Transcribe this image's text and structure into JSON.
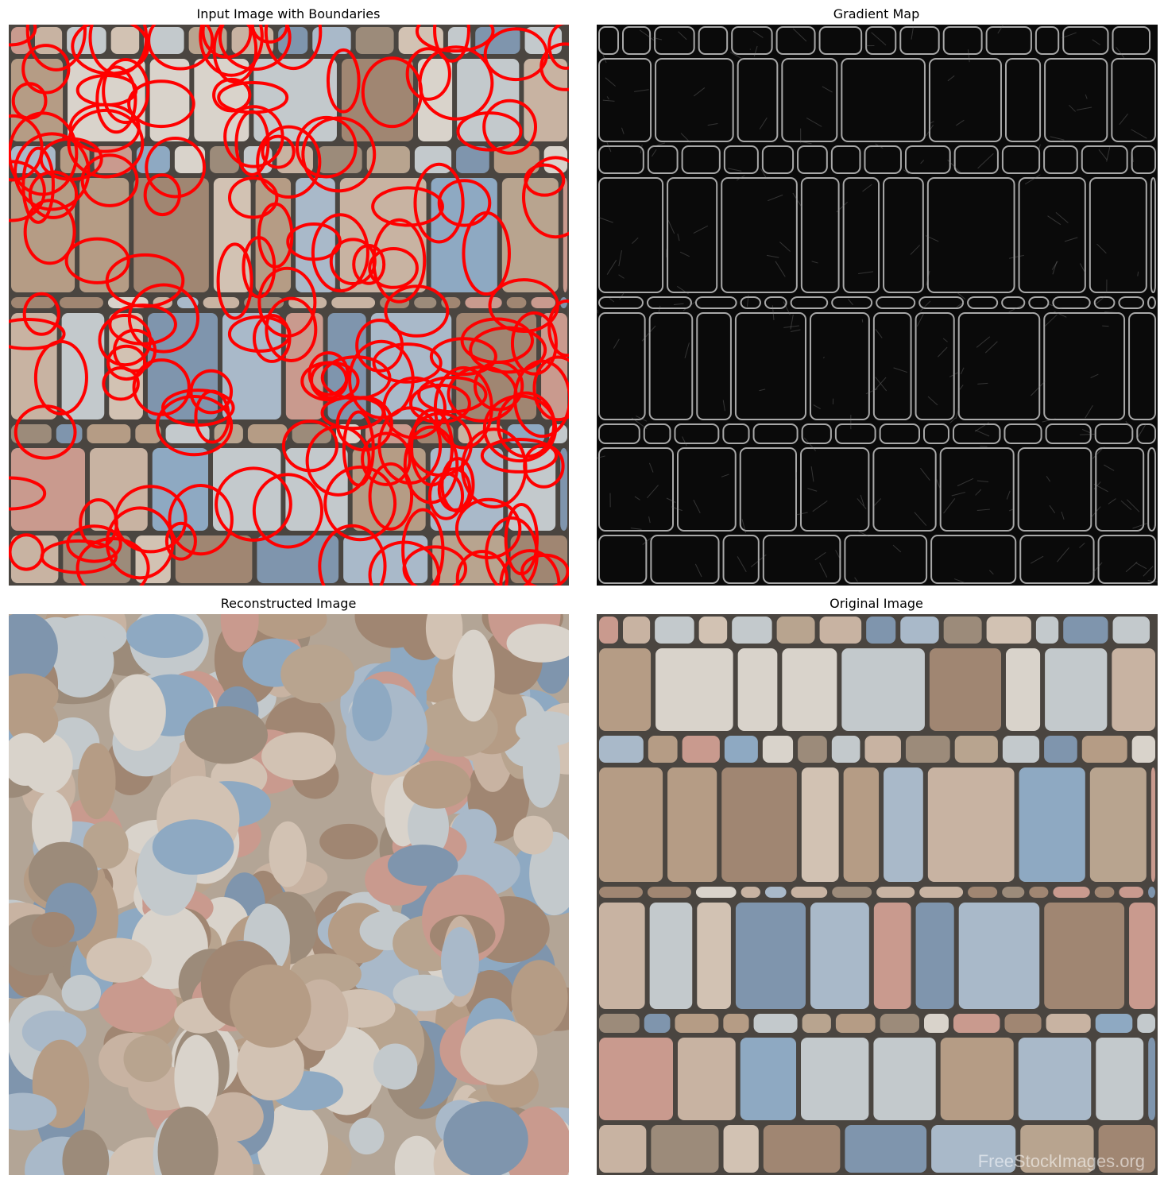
{
  "figure": {
    "panels": [
      {
        "id": "input",
        "title": "Input Image with Boundaries"
      },
      {
        "id": "gradient",
        "title": "Gradient Map"
      },
      {
        "id": "reconstructed",
        "title": "Reconstructed Image"
      },
      {
        "id": "original",
        "title": "Original Image"
      }
    ]
  },
  "palette": {
    "stone_colors": [
      "#a9b9c9",
      "#8ea9c2",
      "#c8b3a2",
      "#d9d3cb",
      "#b59c85",
      "#9c8b7a",
      "#c3c9cc",
      "#b8a48f",
      "#7f95ad",
      "#d2c2b3",
      "#a08672",
      "#c99a8e"
    ],
    "mortar": "#4a4540",
    "boundary": "#ff0000",
    "gradient_bg": "#0a0a0a",
    "gradient_edge": "#d0d0d0"
  },
  "watermark": "FreeStockImages.org"
}
